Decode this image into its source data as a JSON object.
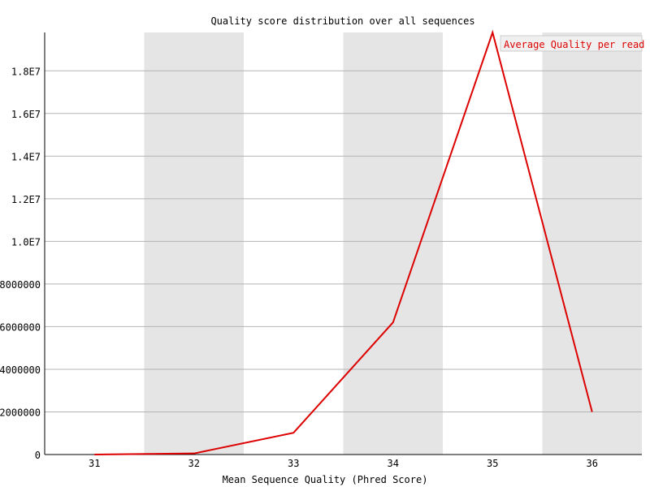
{
  "chart_data": {
    "type": "line",
    "title": "Quality score distribution over all sequences",
    "xlabel": "Mean Sequence Quality (Phred Score)",
    "ylabel": "",
    "x": [
      31,
      32,
      33,
      34,
      35,
      36
    ],
    "series": [
      {
        "name": "Average Quality per read",
        "values": [
          0,
          50000,
          1020000,
          6200000,
          19800000,
          2000000
        ],
        "color": "#dd0000"
      }
    ],
    "xlim": [
      30.5,
      36.5
    ],
    "ylim": [
      0,
      19800000
    ],
    "y_ticks": [
      0,
      2000000,
      4000000,
      6000000,
      8000000,
      10000000,
      12000000,
      14000000,
      16000000,
      18000000
    ],
    "y_tick_labels": [
      "0",
      "2000000",
      "4000000",
      "6000000",
      "8000000",
      "1.0E7",
      "1.2E7",
      "1.4E7",
      "1.6E7",
      "1.8E7"
    ],
    "x_tick_labels": [
      "31",
      "32",
      "33",
      "34",
      "35",
      "36"
    ],
    "grid": true,
    "legend_position": "top-right",
    "band_color": "#e5e5e5",
    "grid_color": "#b4b4b4"
  }
}
